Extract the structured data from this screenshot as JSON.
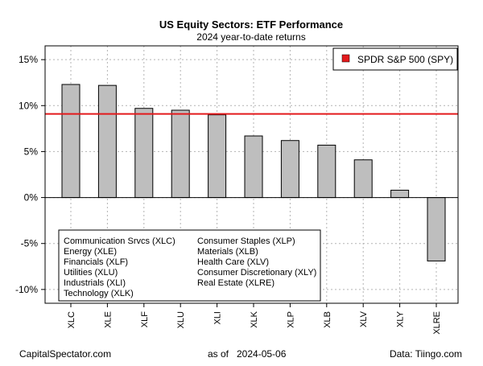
{
  "chart_data": {
    "type": "bar",
    "title": "US Equity Sectors: ETF Performance",
    "subtitle": "2024 year-to-date returns",
    "categories": [
      "XLC",
      "XLE",
      "XLF",
      "XLU",
      "XLI",
      "XLK",
      "XLP",
      "XLB",
      "XLV",
      "XLY",
      "XLRE"
    ],
    "values": [
      12.3,
      12.2,
      9.7,
      9.5,
      9.0,
      6.7,
      6.2,
      5.7,
      4.1,
      0.8,
      -6.9
    ],
    "ylim": [
      -11.5,
      16.5
    ],
    "yticks": [
      15,
      10,
      5,
      0,
      -5,
      -10
    ],
    "ytick_labels": [
      "15%",
      "10%",
      "5%",
      "0%",
      "-5%",
      "-10%"
    ],
    "reference_line": {
      "name": "SPDR S&P 500 (SPY)",
      "value": 9.1,
      "color": "#e31a1c"
    },
    "bar_color": "#bebebe",
    "grid": true,
    "legend_position": "top-right",
    "sector_key": [
      "Communication Srvcs (XLC)",
      "Energy (XLE)",
      "Financials (XLF)",
      "Utilities (XLU)",
      "Industrials (XLI)",
      "Technology (XLK)",
      "Consumer Staples (XLP)",
      "Materials (XLB)",
      "Health Care (XLV)",
      "Consumer Discretionary (XLY)",
      "Real Estate (XLRE)"
    ]
  },
  "footer": {
    "left": "CapitalSpectator.com",
    "as_of_label": "as of",
    "as_of_date": "2024-05-06",
    "right": "Data: Tiingo.com"
  }
}
